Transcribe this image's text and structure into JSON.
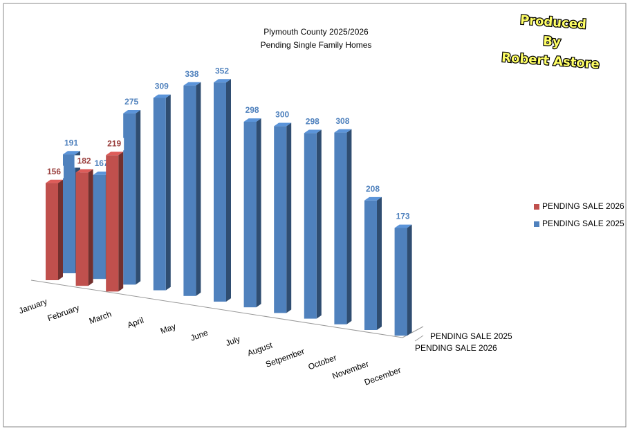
{
  "chart_data": {
    "type": "bar3d",
    "title": "Plymouth County 2025/2026",
    "subtitle": "Pending Single Family Homes",
    "annotations": [
      "Produced",
      "By",
      "Robert Astore"
    ],
    "categories": [
      "January",
      "February",
      "March",
      "April",
      "May",
      "June",
      "July",
      "August",
      "Setpember",
      "October",
      "November",
      "December"
    ],
    "series": [
      {
        "name": "PENDING SALE 2026",
        "color": "#c0504d",
        "values": [
          156,
          182,
          219,
          null,
          null,
          null,
          null,
          null,
          null,
          null,
          null,
          null
        ]
      },
      {
        "name": "PENDING SALE 2025",
        "color": "#4f81bd",
        "values": [
          191,
          167,
          275,
          309,
          338,
          352,
          298,
          300,
          298,
          308,
          208,
          173
        ]
      }
    ],
    "ylim": [
      0,
      400
    ],
    "legend": "right"
  }
}
